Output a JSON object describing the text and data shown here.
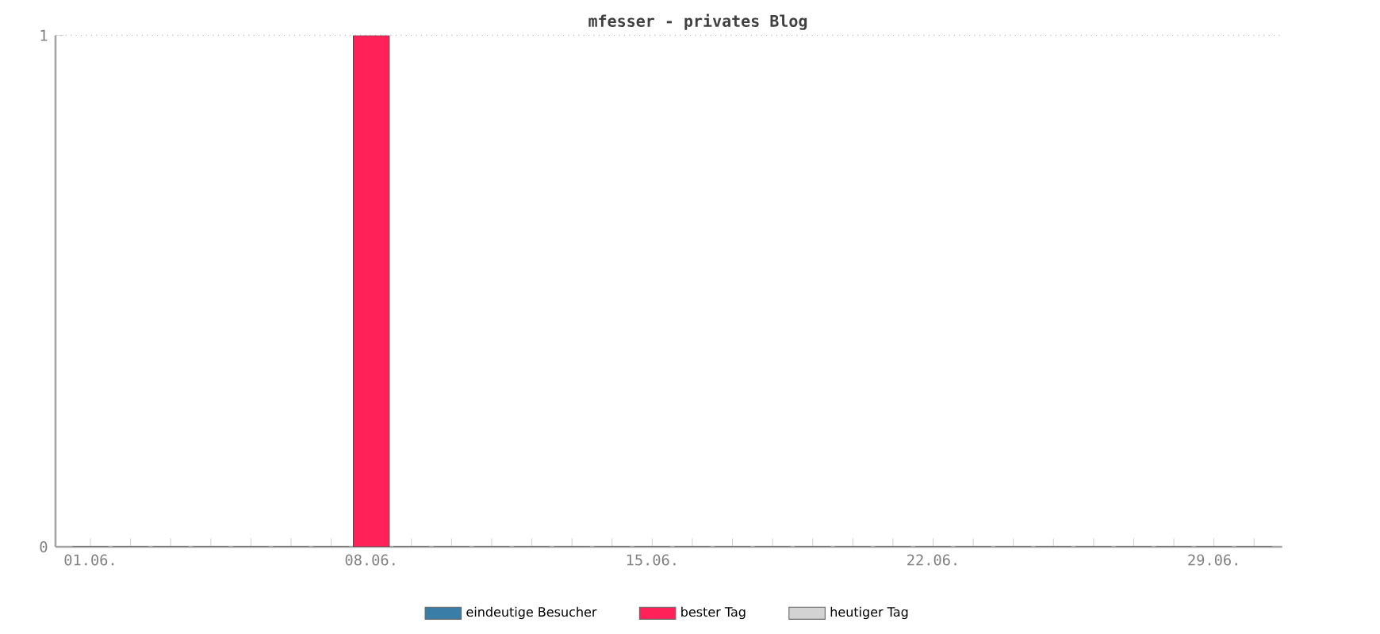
{
  "chart_data": {
    "type": "bar",
    "title": "mfesser - privates Blog",
    "categories": [
      "01.06.",
      null,
      null,
      null,
      null,
      null,
      null,
      "08.06.",
      null,
      null,
      null,
      null,
      null,
      null,
      "15.06.",
      null,
      null,
      null,
      null,
      null,
      null,
      "22.06.",
      null,
      null,
      null,
      null,
      null,
      null,
      "29.06.",
      null
    ],
    "series": [
      {
        "name": "eindeutige Besucher",
        "color": "#3a7ea8",
        "values": [
          0,
          0,
          0,
          0,
          0,
          0,
          0,
          null,
          0,
          0,
          0,
          0,
          0,
          0,
          0,
          0,
          0,
          0,
          0,
          0,
          0,
          0,
          0,
          0,
          0,
          0,
          0,
          0,
          0,
          0
        ]
      },
      {
        "name": "bester Tag",
        "color": "#ff2157",
        "values": [
          null,
          null,
          null,
          null,
          null,
          null,
          null,
          1,
          null,
          null,
          null,
          null,
          null,
          null,
          null,
          null,
          null,
          null,
          null,
          null,
          null,
          null,
          null,
          null,
          null,
          null,
          null,
          null,
          null,
          null
        ]
      },
      {
        "name": "heutiger Tag",
        "color": "#d3d3d3",
        "values": [
          null,
          null,
          null,
          null,
          null,
          null,
          null,
          null,
          null,
          null,
          null,
          null,
          null,
          null,
          null,
          null,
          null,
          null,
          null,
          null,
          null,
          null,
          null,
          null,
          null,
          null,
          null,
          null,
          null,
          null
        ]
      }
    ],
    "ylim": [
      0,
      1
    ],
    "yticks": [
      0,
      1
    ],
    "grid": "y",
    "legend": "bottom"
  }
}
